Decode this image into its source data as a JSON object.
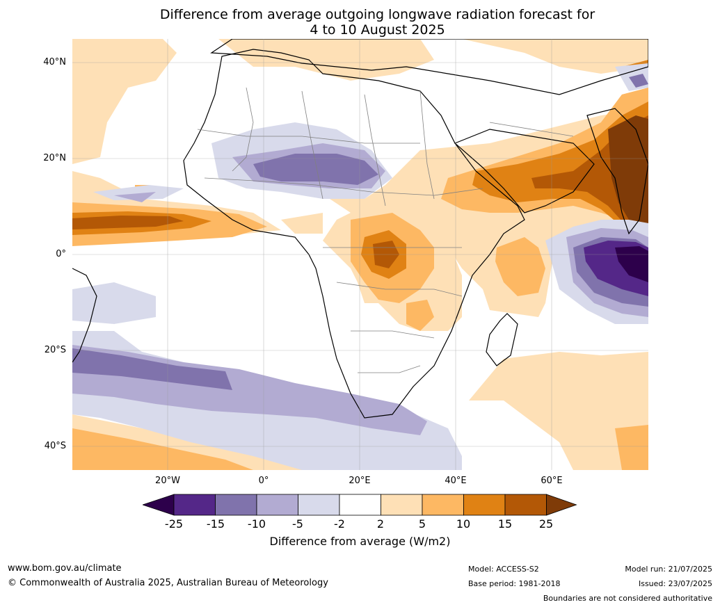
{
  "title": {
    "line1": "Difference from average outgoing longwave radiation forecast for",
    "line2": "4 to 10 August 2025"
  },
  "map": {
    "region": "Africa and surrounding oceans",
    "lat_labels": [
      "40°N",
      "20°N",
      "0°",
      "20°S",
      "40°S"
    ],
    "lon_labels": [
      "20°W",
      "0°",
      "20°E",
      "40°E",
      "60°E"
    ]
  },
  "colorbar": {
    "tick_labels": [
      "-25",
      "-15",
      "-10",
      "-5",
      "-2",
      "2",
      "5",
      "10",
      "15",
      "25"
    ],
    "colors": [
      "#2d004b",
      "#542788",
      "#8073ac",
      "#b2abd2",
      "#d8daeb",
      "#ffffff",
      "#fee0b6",
      "#fdb863",
      "#e08214",
      "#b35806",
      "#7f3b08"
    ],
    "label": "Difference from average (W/m2)"
  },
  "footer": {
    "website": "www.bom.gov.au/climate",
    "copyright": "© Commonwealth of Australia 2025, Australian Bureau of Meteorology",
    "model": "Model: ACCESS-S2",
    "base_period": "Base period: 1981-2018",
    "model_run": "Model run: 21/07/2025",
    "issued": "Issued: 23/07/2025",
    "disclaimer": "Boundaries are not considered authoritative"
  }
}
